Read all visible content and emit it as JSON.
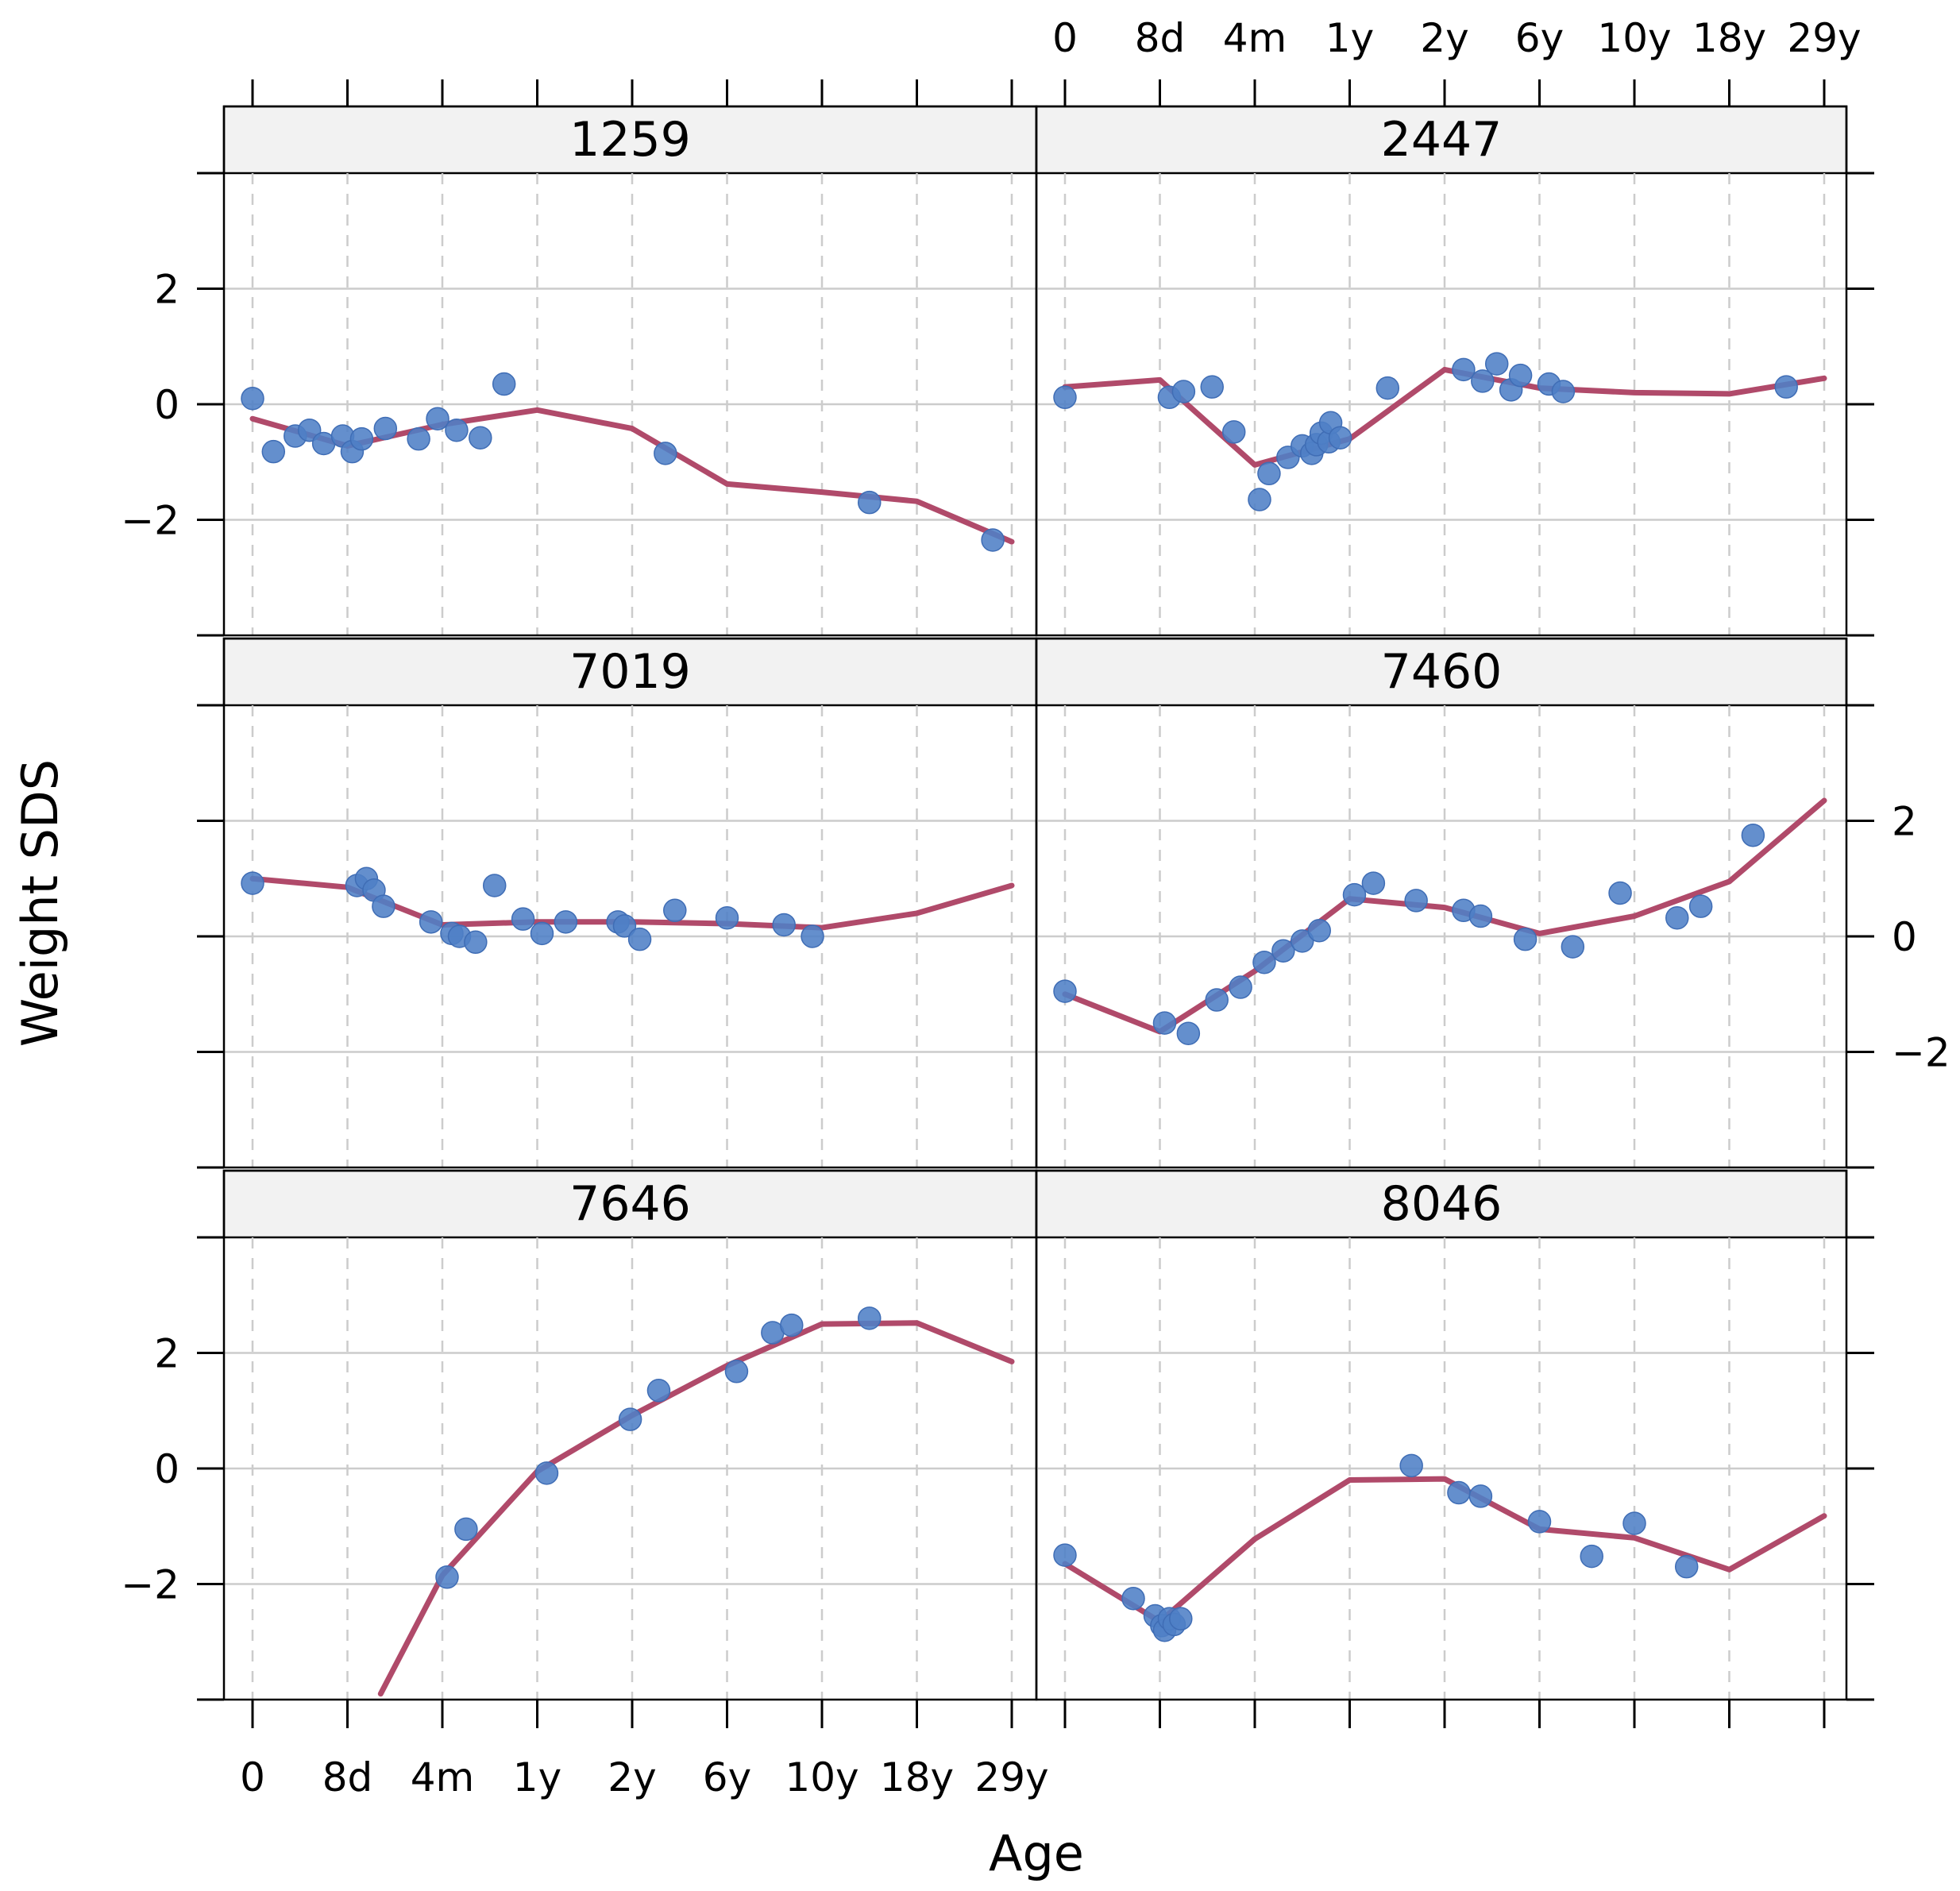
{
  "chart_data": {
    "type": "scatter",
    "xlabel": "Age",
    "ylabel": "Weight SDS",
    "x_tick_labels": [
      "0",
      "8d",
      "4m",
      "1y",
      "2y",
      "6y",
      "10y",
      "18y",
      "29y"
    ],
    "y_ticks": [
      -2,
      0,
      2
    ],
    "y_tick_labels": [
      "−2",
      "0",
      "2"
    ],
    "ylim": [
      -4,
      4
    ],
    "grid": true,
    "colors": {
      "points": "#4f7fc6",
      "line": "#b04a6a",
      "strip": "#f2f2f2",
      "grid": "#cccccc"
    },
    "panels": [
      {
        "id": "1259",
        "points": [
          [
            0.0,
            0.1
          ],
          [
            0.22,
            -0.82
          ],
          [
            0.45,
            -0.55
          ],
          [
            0.6,
            -0.45
          ],
          [
            0.75,
            -0.68
          ],
          [
            0.95,
            -0.55
          ],
          [
            1.05,
            -0.82
          ],
          [
            1.15,
            -0.6
          ],
          [
            1.4,
            -0.42
          ],
          [
            1.75,
            -0.6
          ],
          [
            1.95,
            -0.25
          ],
          [
            2.15,
            -0.45
          ],
          [
            2.4,
            -0.58
          ],
          [
            2.65,
            0.35
          ],
          [
            4.35,
            -0.85
          ],
          [
            6.5,
            -1.7
          ],
          [
            7.8,
            -2.35
          ]
        ],
        "line": [
          [
            0.0,
            -0.25
          ],
          [
            1.0,
            -0.72
          ],
          [
            2.0,
            -0.35
          ],
          [
            3.0,
            -0.1
          ],
          [
            4.0,
            -0.42
          ],
          [
            5.0,
            -1.38
          ],
          [
            6.0,
            -1.52
          ],
          [
            7.0,
            -1.68
          ],
          [
            8.0,
            -2.38
          ]
        ]
      },
      {
        "id": "2447",
        "points": [
          [
            0.0,
            0.12
          ],
          [
            1.1,
            0.12
          ],
          [
            1.25,
            0.22
          ],
          [
            1.55,
            0.3
          ],
          [
            1.78,
            -0.48
          ],
          [
            2.05,
            -1.65
          ],
          [
            2.15,
            -1.2
          ],
          [
            2.35,
            -0.92
          ],
          [
            2.5,
            -0.72
          ],
          [
            2.6,
            -0.85
          ],
          [
            2.65,
            -0.7
          ],
          [
            2.7,
            -0.5
          ],
          [
            2.78,
            -0.65
          ],
          [
            2.8,
            -0.32
          ],
          [
            2.9,
            -0.58
          ],
          [
            3.4,
            0.28
          ],
          [
            4.2,
            0.6
          ],
          [
            4.4,
            0.4
          ],
          [
            4.55,
            0.7
          ],
          [
            4.7,
            0.25
          ],
          [
            4.8,
            0.5
          ],
          [
            5.1,
            0.35
          ],
          [
            5.25,
            0.22
          ],
          [
            7.6,
            0.3
          ]
        ],
        "line": [
          [
            0.0,
            0.3
          ],
          [
            1.0,
            0.42
          ],
          [
            2.0,
            -1.05
          ],
          [
            3.0,
            -0.6
          ],
          [
            4.0,
            0.6
          ],
          [
            5.0,
            0.28
          ],
          [
            6.0,
            0.2
          ],
          [
            7.0,
            0.18
          ],
          [
            8.0,
            0.45
          ]
        ]
      },
      {
        "id": "7019",
        "points": [
          [
            0.0,
            0.92
          ],
          [
            1.1,
            0.88
          ],
          [
            1.2,
            1.0
          ],
          [
            1.28,
            0.8
          ],
          [
            1.38,
            0.52
          ],
          [
            1.88,
            0.25
          ],
          [
            2.1,
            0.05
          ],
          [
            2.18,
            0.0
          ],
          [
            2.35,
            -0.1
          ],
          [
            2.55,
            0.88
          ],
          [
            2.85,
            0.3
          ],
          [
            3.05,
            0.05
          ],
          [
            3.3,
            0.25
          ],
          [
            3.85,
            0.25
          ],
          [
            3.92,
            0.18
          ],
          [
            4.08,
            -0.05
          ],
          [
            4.45,
            0.45
          ],
          [
            5.0,
            0.32
          ],
          [
            5.6,
            0.2
          ],
          [
            5.9,
            0.0
          ]
        ],
        "line": [
          [
            0.0,
            1.0
          ],
          [
            1.0,
            0.85
          ],
          [
            2.0,
            0.2
          ],
          [
            3.0,
            0.25
          ],
          [
            4.0,
            0.25
          ],
          [
            5.0,
            0.22
          ],
          [
            6.0,
            0.15
          ],
          [
            7.0,
            0.4
          ],
          [
            8.0,
            0.88
          ]
        ]
      },
      {
        "id": "7460",
        "points": [
          [
            0.0,
            -0.95
          ],
          [
            1.05,
            -1.5
          ],
          [
            1.3,
            -1.68
          ],
          [
            1.6,
            -1.1
          ],
          [
            1.85,
            -0.88
          ],
          [
            2.1,
            -0.45
          ],
          [
            2.3,
            -0.25
          ],
          [
            2.5,
            -0.08
          ],
          [
            2.68,
            0.1
          ],
          [
            3.05,
            0.72
          ],
          [
            3.25,
            0.92
          ],
          [
            3.7,
            0.62
          ],
          [
            4.2,
            0.45
          ],
          [
            4.38,
            0.35
          ],
          [
            4.85,
            -0.05
          ],
          [
            5.35,
            -0.18
          ],
          [
            5.85,
            0.75
          ],
          [
            6.45,
            0.32
          ],
          [
            6.7,
            0.52
          ],
          [
            7.25,
            1.75
          ]
        ],
        "line": [
          [
            0.0,
            -1.0
          ],
          [
            1.0,
            -1.65
          ],
          [
            2.0,
            -0.6
          ],
          [
            3.0,
            0.65
          ],
          [
            4.0,
            0.5
          ],
          [
            5.0,
            0.05
          ],
          [
            6.0,
            0.35
          ],
          [
            7.0,
            0.95
          ],
          [
            8.0,
            2.35
          ]
        ]
      },
      {
        "id": "7646",
        "points": [
          [
            2.05,
            -1.88
          ],
          [
            2.25,
            -1.05
          ],
          [
            3.1,
            -0.08
          ],
          [
            3.98,
            0.85
          ],
          [
            4.28,
            1.35
          ],
          [
            5.1,
            1.68
          ],
          [
            5.48,
            2.35
          ],
          [
            5.68,
            2.48
          ],
          [
            6.5,
            2.6
          ]
        ],
        "line": [
          [
            1.35,
            -3.9
          ],
          [
            2.0,
            -1.85
          ],
          [
            3.0,
            -0.05
          ],
          [
            4.0,
            0.92
          ],
          [
            5.0,
            1.78
          ],
          [
            6.0,
            2.5
          ],
          [
            7.0,
            2.52
          ],
          [
            8.0,
            1.85
          ]
        ]
      },
      {
        "id": "8046",
        "points": [
          [
            0.0,
            -1.5
          ],
          [
            0.72,
            -2.25
          ],
          [
            0.95,
            -2.55
          ],
          [
            1.02,
            -2.72
          ],
          [
            1.05,
            -2.8
          ],
          [
            1.1,
            -2.6
          ],
          [
            1.15,
            -2.7
          ],
          [
            1.22,
            -2.6
          ],
          [
            3.65,
            0.05
          ],
          [
            4.15,
            -0.42
          ],
          [
            4.38,
            -0.48
          ],
          [
            5.0,
            -0.92
          ],
          [
            5.55,
            -1.52
          ],
          [
            6.0,
            -0.95
          ],
          [
            6.55,
            -1.7
          ]
        ],
        "line": [
          [
            0.0,
            -1.65
          ],
          [
            1.0,
            -2.65
          ],
          [
            2.0,
            -1.22
          ],
          [
            3.0,
            -0.2
          ],
          [
            4.0,
            -0.18
          ],
          [
            5.0,
            -1.05
          ],
          [
            6.0,
            -1.2
          ],
          [
            7.0,
            -1.75
          ],
          [
            8.0,
            -0.82
          ]
        ]
      }
    ]
  }
}
